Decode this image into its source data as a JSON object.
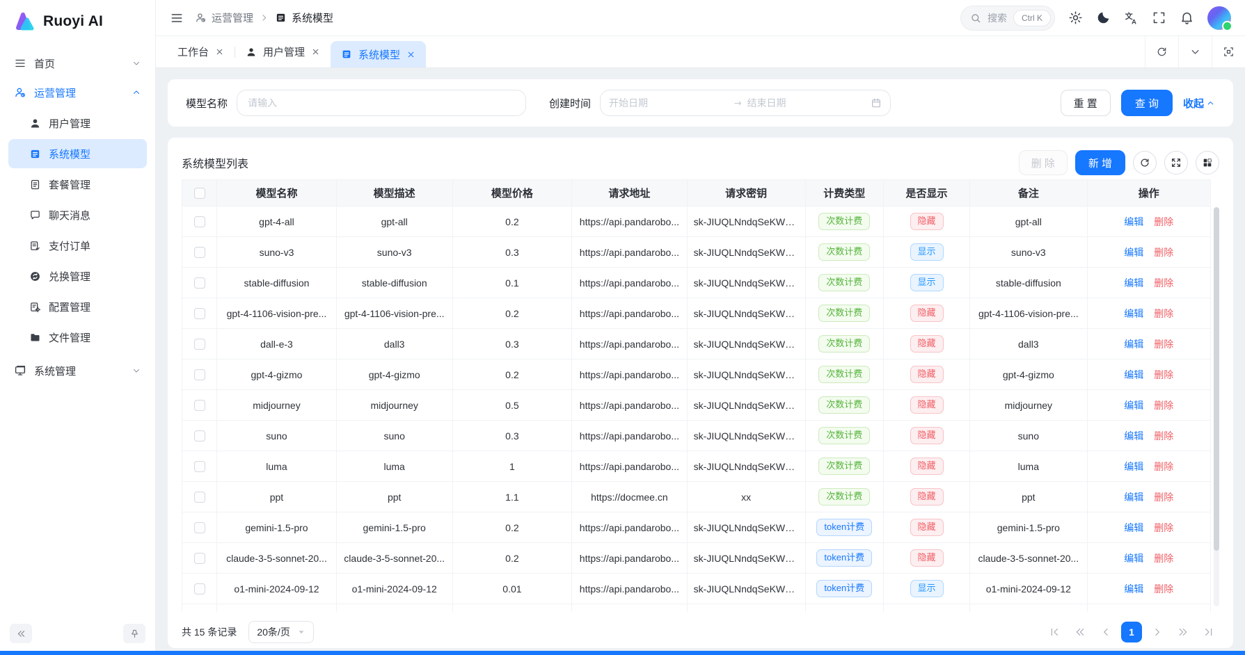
{
  "app": {
    "logo_text": "Ruoyi AI"
  },
  "sidebar": {
    "items": [
      {
        "id": "home",
        "label": "首页",
        "icon": "menu-icon",
        "chevron": "down",
        "active": false
      },
      {
        "id": "operations",
        "label": "运营管理",
        "icon": "user-cog-icon",
        "chevron": "up",
        "active": true,
        "children": [
          {
            "id": "user-management",
            "label": "用户管理",
            "icon": "user-icon",
            "selected": false
          },
          {
            "id": "system-model",
            "label": "系统模型",
            "icon": "list-icon",
            "selected": true
          },
          {
            "id": "package-management",
            "label": "套餐管理",
            "icon": "file-text-icon",
            "selected": false
          },
          {
            "id": "chat-messages",
            "label": "聊天消息",
            "icon": "chat-icon",
            "selected": false
          },
          {
            "id": "payment-orders",
            "label": "支付订单",
            "icon": "file-check-icon",
            "selected": false
          },
          {
            "id": "redeem-management",
            "label": "兑换管理",
            "icon": "exchange-icon",
            "selected": false
          },
          {
            "id": "config-management",
            "label": "配置管理",
            "icon": "config-icon",
            "selected": false
          },
          {
            "id": "file-management",
            "label": "文件管理",
            "icon": "folder-icon",
            "selected": false
          }
        ]
      },
      {
        "id": "system",
        "label": "系统管理",
        "icon": "monitor-icon",
        "chevron": "down",
        "active": false
      }
    ]
  },
  "topbar": {
    "breadcrumb": [
      {
        "label": "运营管理",
        "icon": "user-cog-icon"
      },
      {
        "label": "系统模型",
        "icon": "list-icon"
      }
    ],
    "search": {
      "placeholder": "搜索",
      "shortcut": "Ctrl K"
    },
    "actions": [
      "gear-icon",
      "moon-icon",
      "translate-icon",
      "fullscreen-icon",
      "bell-icon"
    ]
  },
  "tabs": {
    "items": [
      {
        "label": "工作台",
        "icon": null,
        "active": false
      },
      {
        "label": "用户管理",
        "icon": "user-icon",
        "active": false
      },
      {
        "label": "系统模型",
        "icon": "list-icon",
        "active": true
      }
    ],
    "actions": [
      "refresh-icon",
      "chevron-down-icon",
      "maximize-icon"
    ]
  },
  "filter": {
    "name_label": "模型名称",
    "name_placeholder": "请输入",
    "time_label": "创建时间",
    "start_placeholder": "开始日期",
    "end_placeholder": "结束日期",
    "reset_label": "重 置",
    "search_label": "查 询",
    "collapse_label": "收起"
  },
  "list": {
    "title": "系统模型列表",
    "delete_label": "删 除",
    "add_label": "新 增",
    "tools": [
      "refresh-icon",
      "expand-icon",
      "columns-icon"
    ]
  },
  "table": {
    "headers": [
      "模型名称",
      "模型描述",
      "模型价格",
      "请求地址",
      "请求密钥",
      "计费类型",
      "是否显示",
      "备注",
      "操作"
    ],
    "edit_label": "编辑",
    "delete_label": "删除",
    "badges": {
      "count": "次数计费",
      "token": "token计费",
      "hide": "隐藏",
      "show": "显示"
    },
    "rows": [
      {
        "name": "gpt-4-all",
        "desc": "gpt-all",
        "price": "0.2",
        "url": "https://api.pandarobo...",
        "key": "sk-JIUQLNndqSeKWU...",
        "billing": "count",
        "visible": "hide",
        "remark": "gpt-all"
      },
      {
        "name": "suno-v3",
        "desc": "suno-v3",
        "price": "0.3",
        "url": "https://api.pandarobo...",
        "key": "sk-JIUQLNndqSeKWU...",
        "billing": "count",
        "visible": "show",
        "remark": "suno-v3"
      },
      {
        "name": "stable-diffusion",
        "desc": "stable-diffusion",
        "price": "0.1",
        "url": "https://api.pandarobo...",
        "key": "sk-JIUQLNndqSeKWU...",
        "billing": "count",
        "visible": "show",
        "remark": "stable-diffusion"
      },
      {
        "name": "gpt-4-1106-vision-pre...",
        "desc": "gpt-4-1106-vision-pre...",
        "price": "0.2",
        "url": "https://api.pandarobo...",
        "key": "sk-JIUQLNndqSeKWU...",
        "billing": "count",
        "visible": "hide",
        "remark": "gpt-4-1106-vision-pre..."
      },
      {
        "name": "dall-e-3",
        "desc": "dall3",
        "price": "0.3",
        "url": "https://api.pandarobo...",
        "key": "sk-JIUQLNndqSeKWU...",
        "billing": "count",
        "visible": "hide",
        "remark": "dall3"
      },
      {
        "name": "gpt-4-gizmo",
        "desc": "gpt-4-gizmo",
        "price": "0.2",
        "url": "https://api.pandarobo...",
        "key": "sk-JIUQLNndqSeKWU...",
        "billing": "count",
        "visible": "hide",
        "remark": "gpt-4-gizmo"
      },
      {
        "name": "midjourney",
        "desc": "midjourney",
        "price": "0.5",
        "url": "https://api.pandarobo...",
        "key": "sk-JIUQLNndqSeKWU...",
        "billing": "count",
        "visible": "hide",
        "remark": "midjourney"
      },
      {
        "name": "suno",
        "desc": "suno",
        "price": "0.3",
        "url": "https://api.pandarobo...",
        "key": "sk-JIUQLNndqSeKWU...",
        "billing": "count",
        "visible": "hide",
        "remark": "suno"
      },
      {
        "name": "luma",
        "desc": "luma",
        "price": "1",
        "url": "https://api.pandarobo...",
        "key": "sk-JIUQLNndqSeKWU...",
        "billing": "count",
        "visible": "hide",
        "remark": "luma"
      },
      {
        "name": "ppt",
        "desc": "ppt",
        "price": "1.1",
        "url": "https://docmee.cn",
        "key": "xx",
        "billing": "count",
        "visible": "hide",
        "remark": "ppt"
      },
      {
        "name": "gemini-1.5-pro",
        "desc": "gemini-1.5-pro",
        "price": "0.2",
        "url": "https://api.pandarobo...",
        "key": "sk-JIUQLNndqSeKWU...",
        "billing": "token",
        "visible": "hide",
        "remark": "gemini-1.5-pro"
      },
      {
        "name": "claude-3-5-sonnet-20...",
        "desc": "claude-3-5-sonnet-20...",
        "price": "0.2",
        "url": "https://api.pandarobo...",
        "key": "sk-JIUQLNndqSeKWU...",
        "billing": "token",
        "visible": "hide",
        "remark": "claude-3-5-sonnet-20..."
      },
      {
        "name": "o1-mini-2024-09-12",
        "desc": "o1-mini-2024-09-12",
        "price": "0.01",
        "url": "https://api.pandarobo...",
        "key": "sk-JIUQLNndqSeKWU...",
        "billing": "token",
        "visible": "show",
        "remark": "o1-mini-2024-09-12"
      }
    ]
  },
  "pagination": {
    "total_text": "共 15 条记录",
    "page_size": "20条/页",
    "current_page": "1",
    "controls": [
      "first",
      "prev-double",
      "prev",
      "page",
      "next",
      "next-double",
      "last"
    ]
  },
  "colors": {
    "primary": "#1677ff",
    "badge_green": "#54b33a",
    "badge_red": "#f05f66",
    "badge_blue": "#2395ff"
  }
}
